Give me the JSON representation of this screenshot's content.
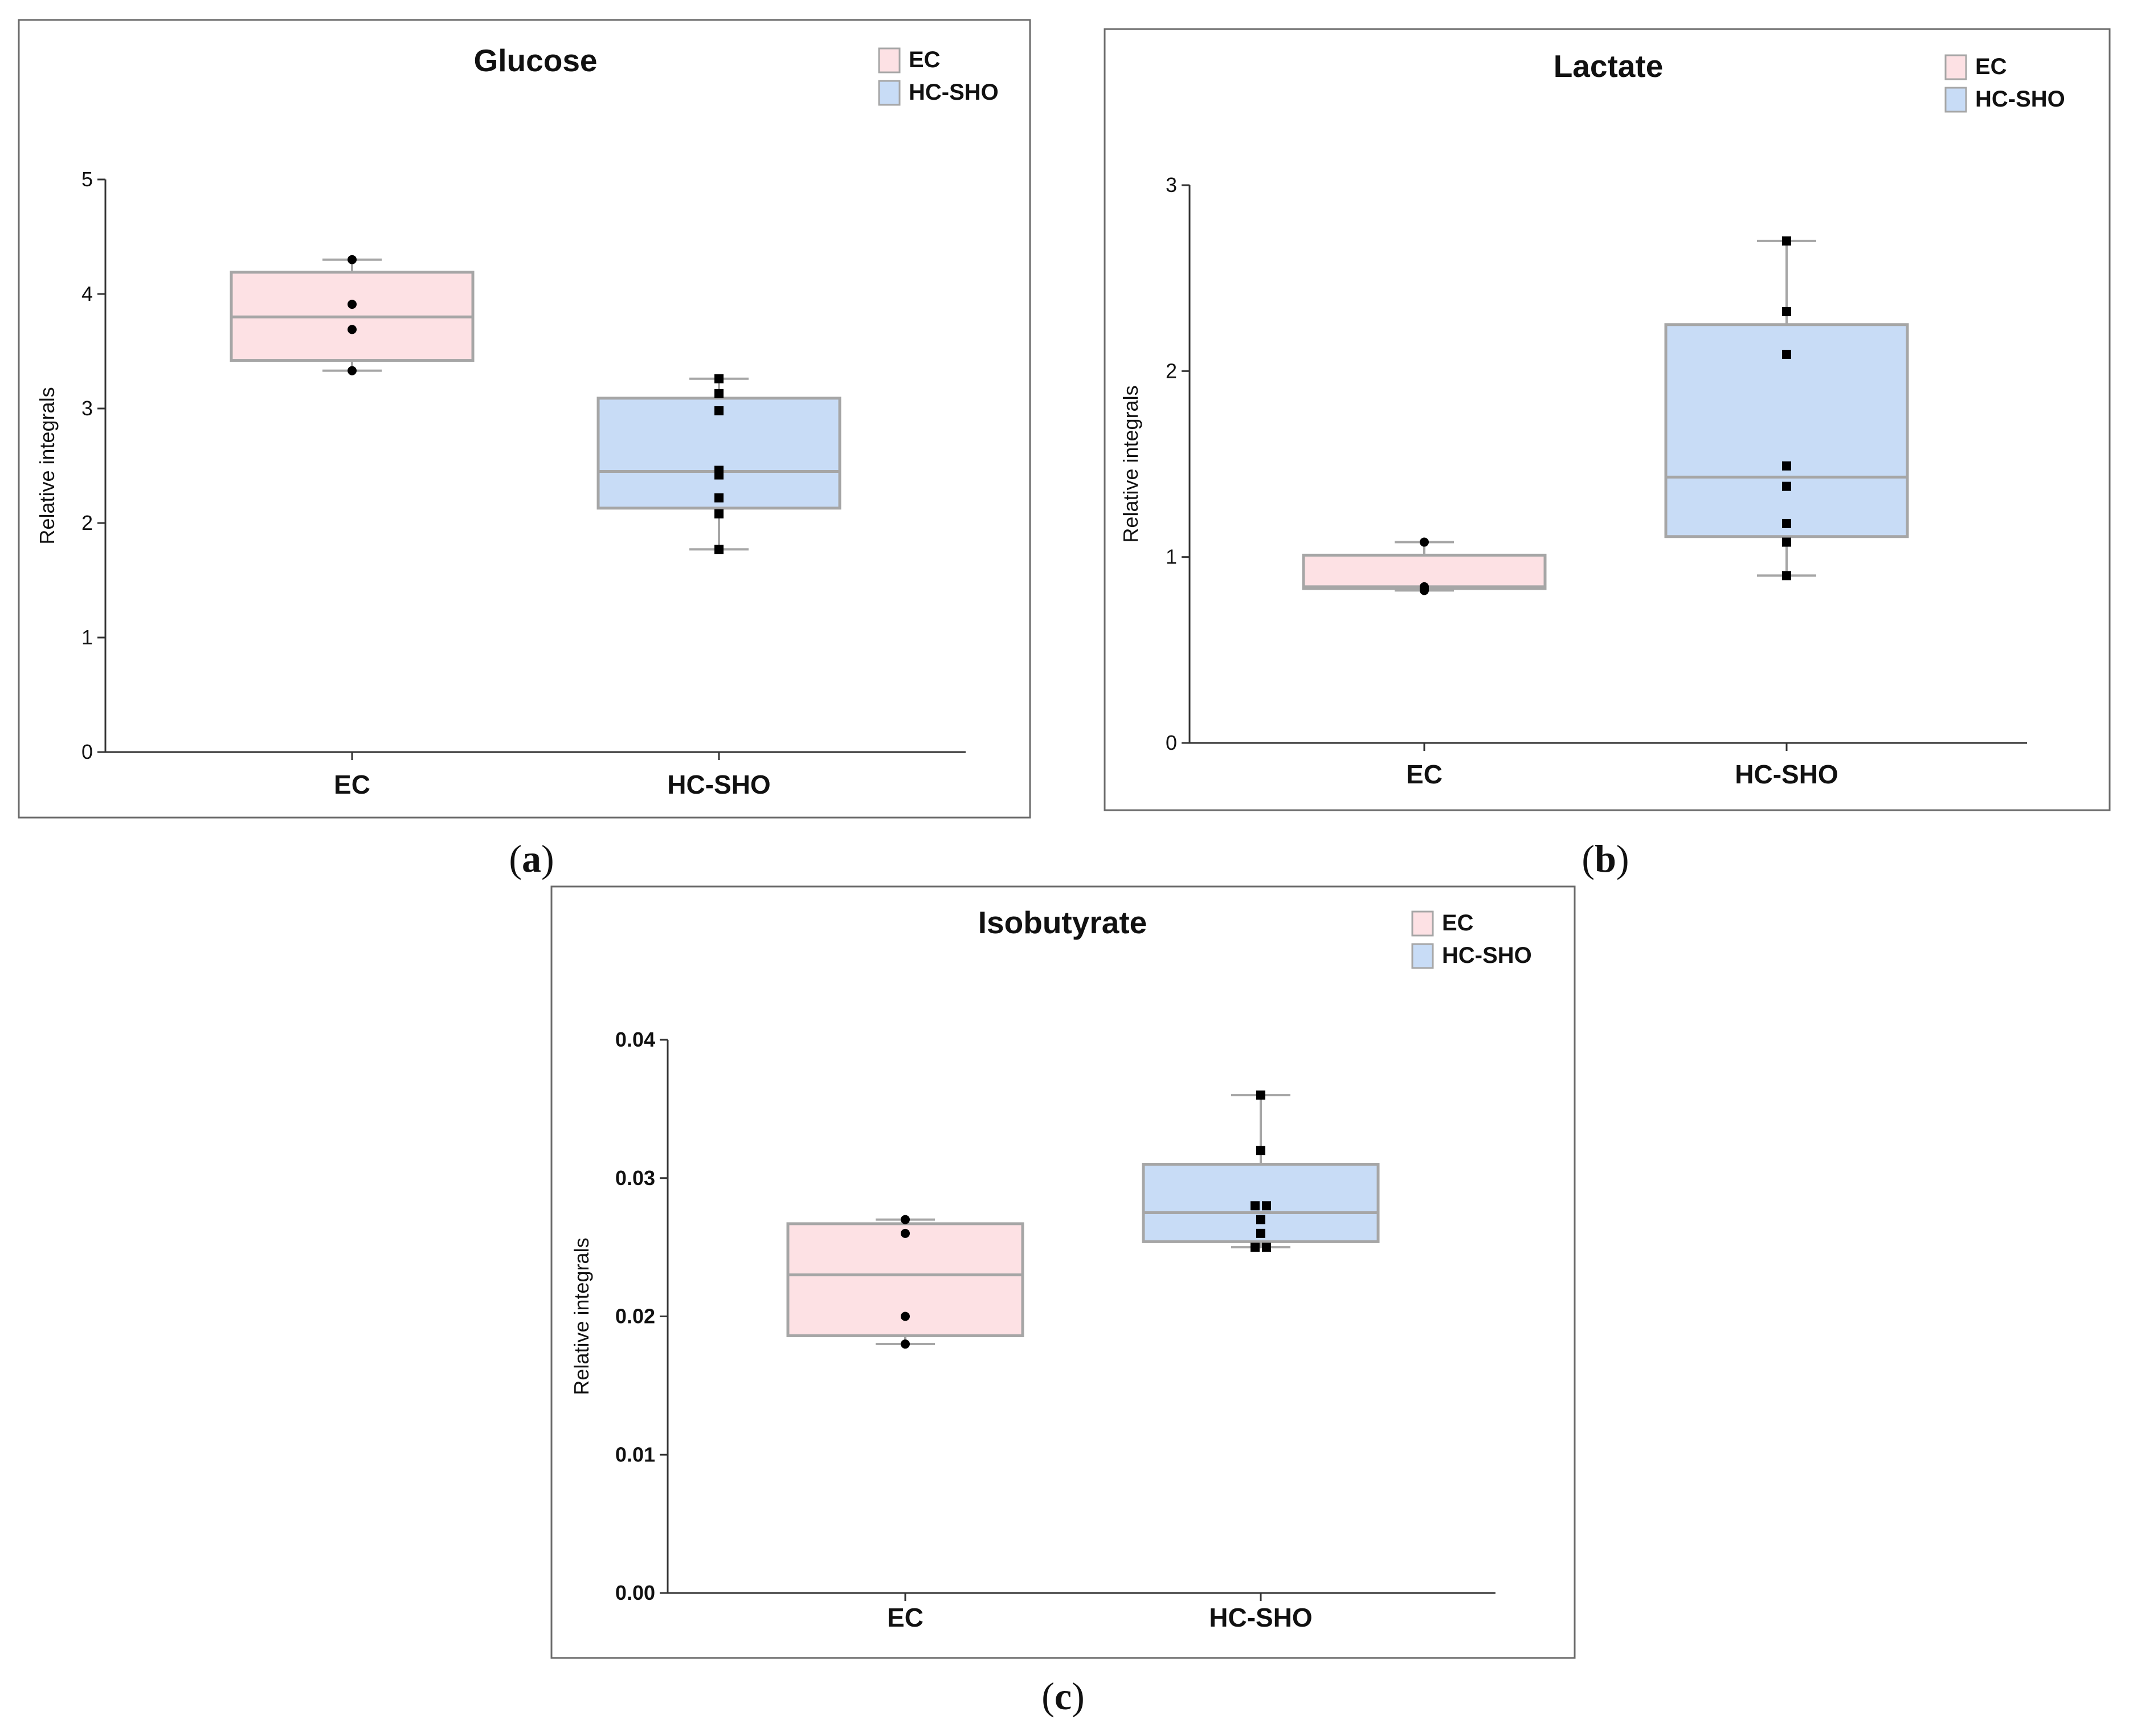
{
  "chart_data": [
    {
      "type": "box",
      "title": "Glucose",
      "ylabel": "Relative integrals",
      "ylim": [
        0,
        5
      ],
      "yticks": [
        "0",
        "1",
        "2",
        "3",
        "4",
        "5"
      ],
      "categories": [
        "EC",
        "HC-SHO"
      ],
      "legend": [
        "EC",
        "HC-SHO"
      ],
      "caption_letter": "a",
      "boxes": [
        {
          "name": "EC",
          "min": 3.33,
          "q1": 3.42,
          "median": 3.8,
          "q3": 4.19,
          "max": 4.3,
          "points": [
            4.3,
            3.91,
            3.69,
            3.33
          ],
          "marker": "circle"
        },
        {
          "name": "HC-SHO",
          "min": 1.77,
          "q1": 2.13,
          "median": 2.45,
          "q3": 3.09,
          "max": 3.26,
          "points": [
            3.26,
            3.13,
            2.98,
            2.46,
            2.42,
            2.22,
            2.08,
            1.77
          ],
          "marker": "square"
        }
      ]
    },
    {
      "type": "box",
      "title": "Lactate",
      "ylabel": "Relative integrals",
      "ylim": [
        0,
        3
      ],
      "yticks": [
        "0",
        "1",
        "2",
        "3"
      ],
      "categories": [
        "EC",
        "HC-SHO"
      ],
      "legend": [
        "EC",
        "HC-SHO"
      ],
      "caption_letter": "b",
      "boxes": [
        {
          "name": "EC",
          "min": 0.82,
          "q1": 0.83,
          "median": 0.84,
          "q3": 1.01,
          "max": 1.08,
          "points": [
            1.08,
            0.84,
            0.82,
            0.83
          ],
          "marker": "circle"
        },
        {
          "name": "HC-SHO",
          "min": 0.9,
          "q1": 1.11,
          "median": 1.43,
          "q3": 2.25,
          "max": 2.7,
          "points": [
            2.7,
            2.32,
            2.09,
            1.49,
            1.38,
            1.18,
            1.08,
            0.9
          ],
          "marker": "square"
        }
      ]
    },
    {
      "type": "box",
      "title": "Isobutyrate",
      "ylabel": "Relative integrals",
      "ylim": [
        0,
        0.04
      ],
      "yticks": [
        "0.00",
        "0.01",
        "0.02",
        "0.03",
        "0.04"
      ],
      "categories": [
        "EC",
        "HC-SHO"
      ],
      "legend": [
        "EC",
        "HC-SHO"
      ],
      "caption_letter": "c",
      "boxes": [
        {
          "name": "EC",
          "min": 0.018,
          "q1": 0.0186,
          "median": 0.023,
          "q3": 0.0267,
          "max": 0.027,
          "points": [
            0.027,
            0.026,
            0.02,
            0.018
          ],
          "marker": "circle"
        },
        {
          "name": "HC-SHO",
          "min": 0.025,
          "q1": 0.0254,
          "median": 0.0275,
          "q3": 0.031,
          "max": 0.036,
          "points": [
            0.036,
            0.032,
            0.028,
            0.028,
            0.027,
            0.026,
            0.025,
            0.025
          ],
          "marker": "square"
        }
      ]
    }
  ],
  "colors": {
    "ec_fill": "#fde1e4",
    "hc_fill": "#c8dcf6",
    "box_stroke": "#a6a6a6",
    "axis": "#333333",
    "point": "#000000"
  }
}
